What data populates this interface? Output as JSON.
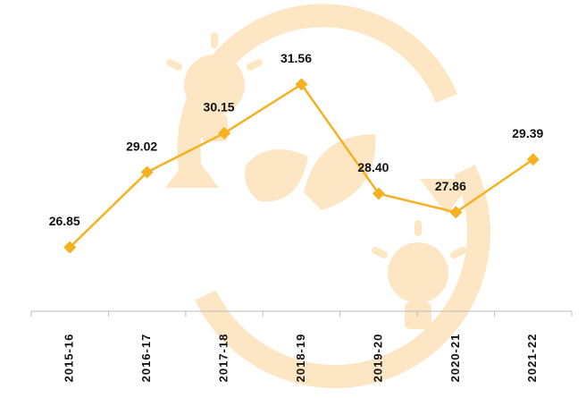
{
  "chart_data": {
    "type": "line",
    "categories": [
      "2015-16",
      "2016-17",
      "2017-18",
      "2018-19",
      "2019-20",
      "2020-21",
      "2021-22"
    ],
    "values": [
      26.85,
      29.02,
      30.15,
      31.56,
      28.4,
      27.86,
      29.39
    ],
    "value_labels": [
      "26.85",
      "29.02",
      "30.15",
      "31.56",
      "28.40",
      "27.86",
      "29.39"
    ],
    "color": "#f5b120",
    "ylim": [
      25,
      34
    ]
  }
}
